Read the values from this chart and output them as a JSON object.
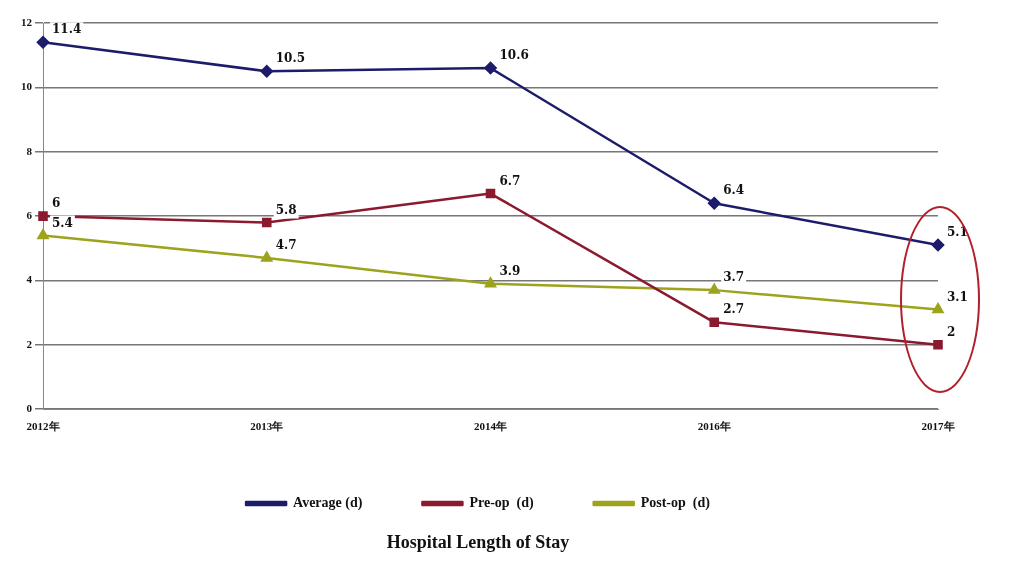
{
  "chart_data": {
    "type": "line",
    "title": "Hospital Length of Stay",
    "categories": [
      "2012年",
      "2013年",
      "2014年",
      "2016年",
      "2017年"
    ],
    "series": [
      {
        "name": "Average (d)",
        "color": "#1c1c6b",
        "marker": "diamond",
        "values": [
          11.4,
          10.5,
          10.6,
          6.4,
          5.1
        ]
      },
      {
        "name": "Pre-op  (d)",
        "color": "#8b1a2e",
        "marker": "square",
        "values": [
          6,
          5.8,
          6.7,
          2.7,
          2
        ]
      },
      {
        "name": "Post-op  (d)",
        "color": "#9da31c",
        "marker": "triangle",
        "values": [
          5.4,
          4.7,
          3.9,
          3.7,
          3.1
        ]
      }
    ],
    "ylim": [
      0,
      12
    ],
    "yticks": [
      0,
      2,
      4,
      6,
      8,
      10,
      12
    ],
    "grid": "y",
    "legend": "bottom",
    "data_labels": true
  }
}
